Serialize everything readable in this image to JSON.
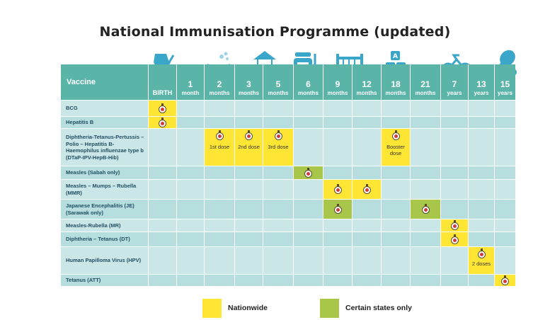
{
  "title": "National Immunisation Programme (updated)",
  "header": {
    "vaccine_label": "Vaccine",
    "ages": [
      {
        "num": "",
        "unit": "BIRTH"
      },
      {
        "num": "1",
        "unit": "month"
      },
      {
        "num": "2",
        "unit": "months"
      },
      {
        "num": "3",
        "unit": "months"
      },
      {
        "num": "5",
        "unit": "months"
      },
      {
        "num": "6",
        "unit": "months"
      },
      {
        "num": "9",
        "unit": "months"
      },
      {
        "num": "12",
        "unit": "months"
      },
      {
        "num": "18",
        "unit": "months"
      },
      {
        "num": "21",
        "unit": "months"
      },
      {
        "num": "7",
        "unit": "years"
      },
      {
        "num": "13",
        "unit": "years"
      },
      {
        "num": "15",
        "unit": "years"
      }
    ],
    "icons": [
      "stroller-icon",
      "bathtub-icon",
      "baby-mobile-icon",
      "baby-bottle-icon",
      "crib-icon",
      "abc-blocks-icon",
      "tricycle-icon",
      "tennis-racket-icon"
    ]
  },
  "vaccines": [
    {
      "name": "BCG"
    },
    {
      "name": "Hepatitis B"
    },
    {
      "name": "Diphtheria-Tetanus-Pertussis – Polio – Hepatitis B-Haemophilus influenzae type b (DTaP-IPV-HepB-Hib)"
    },
    {
      "name": "Measles (Sabah only)"
    },
    {
      "name": "Measles – Mumps – Rubella (MMR)"
    },
    {
      "name": "Japanese Encephalitis (JE) (Sarawak only)"
    },
    {
      "name": "Measles-Rubella (MR)"
    },
    {
      "name": "Diphtheria – Tetanus (DT)"
    },
    {
      "name": "Human Papilloma Virus (HPV)"
    },
    {
      "name": "Tetanus (ATT)"
    }
  ],
  "schedule": [
    {
      "row": 0,
      "col": 0,
      "color": "yellow",
      "note": ""
    },
    {
      "row": 1,
      "col": 0,
      "color": "yellow",
      "note": ""
    },
    {
      "row": 2,
      "col": 2,
      "color": "yellow",
      "note": "1st dose"
    },
    {
      "row": 2,
      "col": 3,
      "color": "yellow",
      "note": "2nd dose"
    },
    {
      "row": 2,
      "col": 4,
      "color": "yellow",
      "note": "3rd dose"
    },
    {
      "row": 2,
      "col": 8,
      "color": "yellow",
      "note": "Booster dose"
    },
    {
      "row": 3,
      "col": 5,
      "color": "green",
      "note": ""
    },
    {
      "row": 4,
      "col": 6,
      "color": "yellow",
      "note": ""
    },
    {
      "row": 4,
      "col": 7,
      "color": "yellow",
      "note": ""
    },
    {
      "row": 5,
      "col": 6,
      "color": "green",
      "note": ""
    },
    {
      "row": 5,
      "col": 9,
      "color": "green",
      "note": ""
    },
    {
      "row": 6,
      "col": 10,
      "color": "yellow",
      "note": ""
    },
    {
      "row": 7,
      "col": 10,
      "color": "yellow",
      "note": ""
    },
    {
      "row": 8,
      "col": 11,
      "color": "yellow",
      "note": "2 doses"
    },
    {
      "row": 9,
      "col": 12,
      "color": "yellow",
      "note": ""
    }
  ],
  "legend": [
    {
      "label": "Nationwide",
      "color": "#ffe634"
    },
    {
      "label": "Certain states only",
      "color": "#a8c74a"
    }
  ],
  "colors": {
    "header": "#5ab4a8",
    "row_light": "#cbe6e6",
    "row_dark": "#b7dede",
    "nationwide": "#ffe634",
    "certain_states": "#a8c74a"
  }
}
